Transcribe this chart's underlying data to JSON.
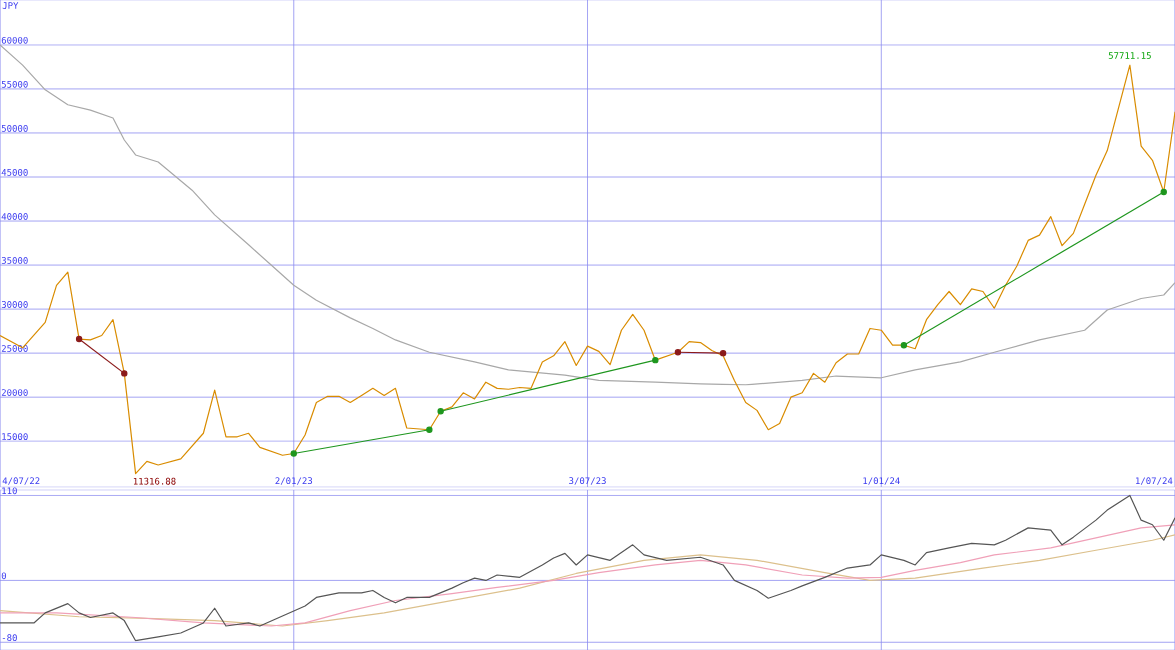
{
  "chart_data": [
    {
      "type": "line",
      "ylabel": "JPY",
      "grid": true,
      "xlim": [
        "2022-07-04",
        "2024-07-01"
      ],
      "xticks": [
        {
          "value": "2022-07-04",
          "label": "4/07/22"
        },
        {
          "value": "2023-01-02",
          "label": "2/01/23"
        },
        {
          "value": "2023-07-03",
          "label": "3/07/23"
        },
        {
          "value": "2024-01-01",
          "label": "1/01/24"
        },
        {
          "value": "2024-07-01",
          "label": "1/07/24"
        }
      ],
      "ylim": [
        9800,
        65100
      ],
      "yticks": [
        15000,
        20000,
        25000,
        30000,
        35000,
        40000,
        45000,
        50000,
        55000,
        60000
      ],
      "annotations": [
        {
          "text": "11316.88",
          "x": "2022-09-26",
          "y": 11316.88
        },
        {
          "text": "57711.15",
          "x": "2024-06-03",
          "y": 57711.15
        }
      ],
      "series": [
        {
          "color": "#a8a8a8",
          "x": [
            "2022-07-04",
            "2022-07-18",
            "2022-08-01",
            "2022-08-15",
            "2022-08-29",
            "2022-09-12",
            "2022-09-19",
            "2022-09-26",
            "2022-10-10",
            "2022-10-31",
            "2022-11-14",
            "2022-12-05",
            "2022-12-19",
            "2023-01-02",
            "2023-01-16",
            "2023-02-06",
            "2023-02-20",
            "2023-03-06",
            "2023-03-27",
            "2023-04-24",
            "2023-05-15",
            "2023-06-19",
            "2023-07-10",
            "2023-08-14",
            "2023-09-11",
            "2023-10-09",
            "2023-11-13",
            "2023-12-04",
            "2024-01-01",
            "2024-01-22",
            "2024-02-19",
            "2024-03-11",
            "2024-04-08",
            "2024-05-06",
            "2024-05-20",
            "2024-06-10",
            "2024-06-24",
            "2024-07-01"
          ],
          "values": [
            60000,
            57700,
            54900,
            53200,
            52600,
            51700,
            49200,
            47500,
            46700,
            43500,
            40700,
            37300,
            35000,
            32700,
            31000,
            29000,
            27800,
            26500,
            25100,
            24000,
            23100,
            22500,
            21900,
            21700,
            21500,
            21400,
            21900,
            22400,
            22200,
            23100,
            24000,
            25100,
            26500,
            27600,
            29900,
            31200,
            31600,
            33000
          ]
        },
        {
          "color": "#d98c00",
          "x": [
            "2022-07-04",
            "2022-07-18",
            "2022-08-01",
            "2022-08-08",
            "2022-08-15",
            "2022-08-22",
            "2022-08-29",
            "2022-09-05",
            "2022-09-12",
            "2022-09-19",
            "2022-09-26",
            "2022-10-03",
            "2022-10-10",
            "2022-10-24",
            "2022-11-07",
            "2022-11-14",
            "2022-11-21",
            "2022-11-28",
            "2022-12-05",
            "2022-12-12",
            "2022-12-26",
            "2023-01-02",
            "2023-01-09",
            "2023-01-16",
            "2023-01-23",
            "2023-01-30",
            "2023-02-06",
            "2023-02-13",
            "2023-02-20",
            "2023-02-27",
            "2023-03-06",
            "2023-03-13",
            "2023-03-27",
            "2023-04-03",
            "2023-04-10",
            "2023-04-17",
            "2023-04-24",
            "2023-05-01",
            "2023-05-08",
            "2023-05-15",
            "2023-05-22",
            "2023-05-29",
            "2023-06-05",
            "2023-06-12",
            "2023-06-19",
            "2023-06-26",
            "2023-07-03",
            "2023-07-10",
            "2023-07-17",
            "2023-07-24",
            "2023-07-31",
            "2023-08-07",
            "2023-08-14",
            "2023-08-28",
            "2023-09-04",
            "2023-09-11",
            "2023-09-18",
            "2023-09-25",
            "2023-10-02",
            "2023-10-09",
            "2023-10-16",
            "2023-10-23",
            "2023-10-30",
            "2023-11-06",
            "2023-11-13",
            "2023-11-20",
            "2023-11-27",
            "2023-12-04",
            "2023-12-11",
            "2023-12-18",
            "2023-12-25",
            "2024-01-01",
            "2024-01-08",
            "2024-01-15",
            "2024-01-22",
            "2024-01-29",
            "2024-02-05",
            "2024-02-12",
            "2024-02-19",
            "2024-02-26",
            "2024-03-04",
            "2024-03-11",
            "2024-03-18",
            "2024-03-25",
            "2024-04-01",
            "2024-04-08",
            "2024-04-15",
            "2024-04-22",
            "2024-04-29",
            "2024-05-06",
            "2024-05-13",
            "2024-05-20",
            "2024-06-03",
            "2024-06-10",
            "2024-06-17",
            "2024-06-24",
            "2024-07-01"
          ],
          "values": [
            27000,
            25600,
            28500,
            32700,
            34200,
            26600,
            26500,
            27000,
            28800,
            22700,
            11316.88,
            12700,
            12300,
            13000,
            15900,
            20800,
            15500,
            15500,
            15900,
            14300,
            13400,
            13600,
            15700,
            19400,
            20100,
            20100,
            19400,
            20200,
            21000,
            20200,
            21000,
            16500,
            16300,
            18400,
            18900,
            20500,
            19800,
            21700,
            21000,
            20900,
            21100,
            21000,
            24000,
            24700,
            26300,
            23600,
            25800,
            25200,
            23700,
            27600,
            29400,
            27600,
            24200,
            25100,
            26300,
            26200,
            25300,
            24700,
            21900,
            19400,
            18500,
            16300,
            17000,
            20000,
            20500,
            22700,
            21700,
            23900,
            24900,
            24900,
            27800,
            27600,
            25900,
            25900,
            25500,
            28800,
            30500,
            32000,
            30500,
            32300,
            32000,
            30100,
            32700,
            34900,
            37800,
            38400,
            40500,
            37200,
            38600,
            41900,
            45200,
            48000,
            57711.15,
            48500,
            46900,
            43300,
            52400
          ]
        },
        {
          "color": "#8b1a1a",
          "marker": "circle",
          "x": [
            "2022-08-22",
            "2022-09-19"
          ],
          "values": [
            26600,
            22700
          ]
        },
        {
          "color": "#1e961e",
          "marker": "circle",
          "x": [
            "2023-01-02",
            "2023-03-27"
          ],
          "values": [
            13600,
            16300
          ]
        },
        {
          "color": "#1e961e",
          "marker": "circle",
          "x": [
            "2023-04-03",
            "2023-08-14"
          ],
          "values": [
            18400,
            24200
          ]
        },
        {
          "color": "#8b1a1a",
          "marker": "circle",
          "x": [
            "2023-08-28",
            "2023-09-25"
          ],
          "values": [
            25100,
            25000
          ]
        },
        {
          "color": "#1e961e",
          "marker": "circle",
          "x": [
            "2024-01-15",
            "2024-06-24"
          ],
          "values": [
            25900,
            43300
          ]
        }
      ]
    },
    {
      "type": "line",
      "grid": true,
      "tick_labels": "y",
      "xlim": [
        "2022-07-04",
        "2024-07-01"
      ],
      "xticks": [
        {
          "value": "2022-07-04",
          "label": null
        },
        {
          "value": "2023-01-02",
          "label": null
        },
        {
          "value": "2023-07-03",
          "label": null
        },
        {
          "value": "2024-01-01",
          "label": null
        },
        {
          "value": "2024-07-01",
          "label": null
        }
      ],
      "ylim": [
        -90,
        117
      ],
      "yticks": [
        -80,
        0,
        110
      ],
      "series": [
        {
          "color": "#dcc08c",
          "x": [
            "2022-07-04",
            "2022-08-22",
            "2022-10-03",
            "2022-11-14",
            "2022-12-26",
            "2023-01-23",
            "2023-02-27",
            "2023-04-10",
            "2023-05-22",
            "2023-06-26",
            "2023-08-07",
            "2023-09-11",
            "2023-10-16",
            "2023-11-27",
            "2023-12-25",
            "2024-01-22",
            "2024-03-04",
            "2024-04-08",
            "2024-05-13",
            "2024-06-17",
            "2024-07-01"
          ],
          "values": [
            -39,
            -47,
            -49,
            -52,
            -59,
            -52,
            -42,
            -26,
            -10,
            9,
            26,
            33,
            26,
            10,
            0,
            3,
            16,
            26,
            39,
            52,
            59
          ]
        },
        {
          "color": "#f0a0b8",
          "x": [
            "2022-07-04",
            "2022-08-08",
            "2022-09-26",
            "2022-11-07",
            "2022-12-19",
            "2023-01-09",
            "2023-02-06",
            "2023-03-06",
            "2023-04-10",
            "2023-05-08",
            "2023-06-12",
            "2023-07-10",
            "2023-08-14",
            "2023-09-11",
            "2023-10-09",
            "2023-11-13",
            "2023-12-11",
            "2024-01-01",
            "2024-01-22",
            "2024-02-19",
            "2024-03-11",
            "2024-04-15",
            "2024-05-13",
            "2024-06-10",
            "2024-07-01"
          ],
          "values": [
            -42,
            -42,
            -48,
            -55,
            -59,
            -55,
            -39,
            -26,
            -17,
            -9,
            0,
            10,
            20,
            26,
            20,
            7,
            3,
            4,
            13,
            23,
            33,
            42,
            55,
            68,
            72
          ]
        },
        {
          "color": "#555555",
          "x": [
            "2022-07-04",
            "2022-07-25",
            "2022-08-01",
            "2022-08-15",
            "2022-08-22",
            "2022-08-29",
            "2022-09-12",
            "2022-09-19",
            "2022-09-26",
            "2022-10-10",
            "2022-10-24",
            "2022-11-07",
            "2022-11-14",
            "2022-11-21",
            "2022-12-05",
            "2022-12-12",
            "2022-12-26",
            "2023-01-09",
            "2023-01-16",
            "2023-01-30",
            "2023-02-13",
            "2023-02-20",
            "2023-02-27",
            "2023-03-06",
            "2023-03-13",
            "2023-03-27",
            "2023-04-10",
            "2023-04-17",
            "2023-04-24",
            "2023-05-01",
            "2023-05-08",
            "2023-05-22",
            "2023-06-05",
            "2023-06-12",
            "2023-06-19",
            "2023-06-26",
            "2023-07-03",
            "2023-07-17",
            "2023-07-24",
            "2023-07-31",
            "2023-08-07",
            "2023-08-21",
            "2023-09-11",
            "2023-09-25",
            "2023-10-02",
            "2023-10-16",
            "2023-10-23",
            "2023-11-06",
            "2023-11-13",
            "2023-11-27",
            "2023-12-11",
            "2023-12-25",
            "2024-01-01",
            "2024-01-15",
            "2024-01-22",
            "2024-01-29",
            "2024-02-12",
            "2024-02-26",
            "2024-03-11",
            "2024-03-18",
            "2024-04-01",
            "2024-04-15",
            "2024-04-22",
            "2024-04-29",
            "2024-05-13",
            "2024-05-20",
            "2024-06-03",
            "2024-06-10",
            "2024-06-17",
            "2024-06-24",
            "2024-07-01"
          ],
          "values": [
            -55,
            -55,
            -42,
            -30,
            -42,
            -48,
            -42,
            -52,
            -78,
            -73,
            -68,
            -55,
            -36,
            -59,
            -55,
            -59,
            -46,
            -33,
            -22,
            -16,
            -16,
            -13,
            -22,
            -29,
            -22,
            -22,
            -10,
            -3,
            3,
            0,
            7,
            4,
            20,
            29,
            35,
            20,
            33,
            26,
            36,
            46,
            33,
            26,
            30,
            20,
            0,
            -13,
            -23,
            -13,
            -7,
            4,
            16,
            20,
            33,
            26,
            20,
            36,
            42,
            48,
            46,
            52,
            68,
            65,
            46,
            56,
            78,
            91,
            110,
            78,
            72,
            52,
            81
          ]
        }
      ]
    }
  ]
}
